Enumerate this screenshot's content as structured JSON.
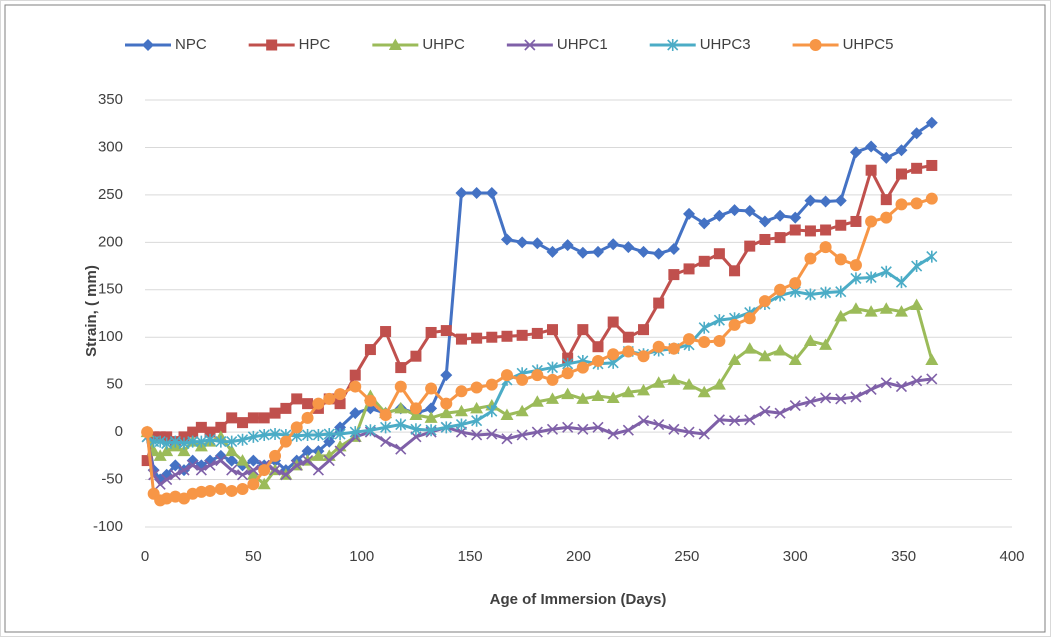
{
  "chart_data": {
    "type": "line",
    "x_label": "Age of Immersion (Days)",
    "y_label": "Strain,  ( mm)",
    "xlim": [
      0,
      400
    ],
    "xticks": [
      0,
      50,
      100,
      150,
      200,
      250,
      300,
      350,
      400
    ],
    "ylim": [
      -100,
      350
    ],
    "yticks": [
      -100,
      -50,
      0,
      50,
      100,
      150,
      200,
      250,
      300,
      350
    ],
    "grid": true,
    "legend": "top",
    "x": [
      1,
      4,
      7,
      10,
      14,
      18,
      22,
      26,
      30,
      35,
      40,
      45,
      50,
      55,
      60,
      65,
      70,
      75,
      80,
      85,
      90,
      97,
      104,
      111,
      118,
      125,
      132,
      139,
      146,
      153,
      160,
      167,
      174,
      181,
      188,
      195,
      202,
      209,
      216,
      223,
      230,
      237,
      244,
      251,
      258,
      265,
      272,
      279,
      286,
      293,
      300,
      307,
      314,
      321,
      328,
      335,
      342,
      349,
      356,
      363
    ],
    "series": [
      {
        "name": "NPC",
        "color": "#4472c4",
        "marker": "diamond",
        "values": [
          0,
          -40,
          -50,
          -45,
          -35,
          -40,
          -30,
          -35,
          -30,
          -25,
          -30,
          -35,
          -30,
          -35,
          -30,
          -40,
          -30,
          -20,
          -20,
          -10,
          5,
          20,
          25,
          20,
          25,
          20,
          25,
          60,
          252,
          252,
          252,
          203,
          200,
          199,
          190,
          197,
          189,
          190,
          198,
          195,
          190,
          188,
          193,
          230,
          220,
          228,
          234,
          233,
          222,
          228,
          226,
          244,
          243,
          244,
          295,
          301,
          289,
          297,
          315,
          326
        ]
      },
      {
        "name": "HPC",
        "color": "#c0504d",
        "marker": "square",
        "values": [
          -30,
          -5,
          -5,
          -5,
          -10,
          -5,
          0,
          5,
          0,
          5,
          15,
          10,
          15,
          15,
          20,
          25,
          35,
          30,
          25,
          35,
          30,
          60,
          87,
          106,
          68,
          80,
          105,
          107,
          98,
          99,
          100,
          101,
          102,
          104,
          108,
          78,
          108,
          90,
          116,
          100,
          108,
          136,
          166,
          172,
          180,
          188,
          170,
          196,
          203,
          205,
          213,
          212,
          213,
          218,
          222,
          276,
          245,
          272,
          278,
          281
        ]
      },
      {
        "name": "UHPC",
        "color": "#9bbb59",
        "marker": "triangle",
        "values": [
          0,
          -20,
          -25,
          -20,
          -15,
          -20,
          -10,
          -15,
          -10,
          -5,
          -20,
          -30,
          -45,
          -55,
          -40,
          -45,
          -35,
          -30,
          -25,
          -25,
          -15,
          -5,
          38,
          20,
          25,
          18,
          15,
          20,
          22,
          25,
          28,
          18,
          22,
          32,
          35,
          40,
          35,
          38,
          36,
          42,
          44,
          52,
          55,
          50,
          42,
          50,
          76,
          88,
          80,
          86,
          76,
          96,
          92,
          122,
          130,
          127,
          130,
          127,
          134,
          76
        ]
      },
      {
        "name": "UHPC1",
        "color": "#7f60a8",
        "marker": "x",
        "values": [
          -5,
          -45,
          -55,
          -50,
          -45,
          -40,
          -35,
          -40,
          -35,
          -30,
          -40,
          -45,
          -40,
          -35,
          -40,
          -45,
          -35,
          -30,
          -40,
          -30,
          -20,
          -5,
          0,
          -10,
          -18,
          -5,
          0,
          5,
          0,
          -3,
          -2,
          -7,
          -3,
          0,
          3,
          5,
          3,
          5,
          -2,
          2,
          12,
          8,
          3,
          0,
          -2,
          13,
          12,
          13,
          22,
          20,
          28,
          32,
          36,
          35,
          37,
          45,
          52,
          48,
          54,
          56
        ]
      },
      {
        "name": "UHPC3",
        "color": "#4bacc6",
        "marker": "star",
        "values": [
          -5,
          -10,
          -10,
          -12,
          -10,
          -12,
          -10,
          -10,
          -8,
          -10,
          -10,
          -8,
          -5,
          -3,
          -2,
          -3,
          -4,
          -3,
          -3,
          -2,
          -2,
          0,
          2,
          5,
          8,
          3,
          2,
          5,
          8,
          12,
          22,
          55,
          62,
          65,
          68,
          72,
          75,
          72,
          73,
          85,
          82,
          86,
          88,
          92,
          110,
          118,
          120,
          126,
          135,
          144,
          148,
          145,
          147,
          148,
          162,
          163,
          169,
          158,
          175,
          185
        ]
      },
      {
        "name": "UHPC5",
        "color": "#f79646",
        "marker": "circle",
        "values": [
          0,
          -65,
          -72,
          -70,
          -68,
          -70,
          -65,
          -63,
          -62,
          -60,
          -62,
          -60,
          -55,
          -40,
          -25,
          -10,
          5,
          15,
          30,
          35,
          40,
          48,
          33,
          18,
          48,
          25,
          46,
          30,
          43,
          47,
          50,
          60,
          55,
          60,
          55,
          62,
          68,
          75,
          82,
          85,
          80,
          90,
          88,
          98,
          95,
          96,
          113,
          120,
          138,
          150,
          157,
          183,
          195,
          182,
          176,
          222,
          226,
          240,
          241,
          246
        ]
      }
    ]
  }
}
